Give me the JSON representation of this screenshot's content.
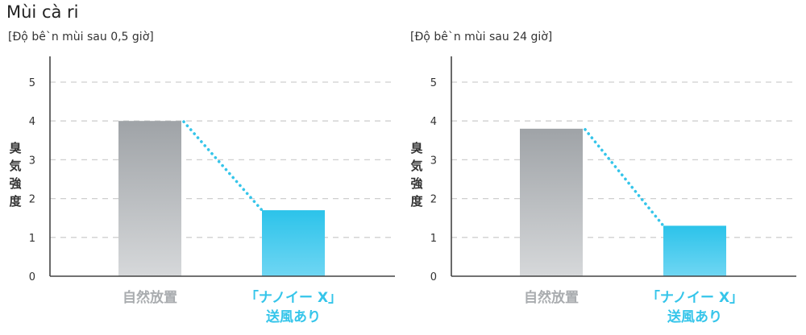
{
  "page": {
    "title": "Mùi cà ri"
  },
  "chart_data": [
    {
      "type": "bar",
      "title": "[Độ bê`n mùi sau 0,5 giờ]",
      "ylabel": "臭気強度",
      "ylim": [
        0,
        5
      ],
      "yticks": [
        "0",
        "1",
        "2",
        "3",
        "4",
        "5"
      ],
      "grid": true,
      "categories": [
        {
          "lines": [
            "自然放置"
          ],
          "color": "#a9acaf"
        },
        {
          "lines": [
            "「ナノイー X」",
            "送風あり"
          ],
          "color": "#35c5ea"
        }
      ],
      "values": [
        4.0,
        1.7
      ],
      "bar_colors": [
        {
          "top": "#9fa3a7",
          "bottom": "#d6d8da"
        },
        {
          "top": "#2cc3ea",
          "bottom": "#6fd6f3"
        }
      ],
      "connector": "dotted",
      "connector_color": "#35c5ea"
    },
    {
      "type": "bar",
      "title": "[Độ bê`n mùi sau 24 giờ]",
      "ylabel": "臭気強度",
      "ylim": [
        0,
        5
      ],
      "yticks": [
        "0",
        "1",
        "2",
        "3",
        "4",
        "5"
      ],
      "grid": true,
      "categories": [
        {
          "lines": [
            "自然放置"
          ],
          "color": "#a9acaf"
        },
        {
          "lines": [
            "「ナノイー X」",
            "送風あり"
          ],
          "color": "#35c5ea"
        }
      ],
      "values": [
        3.8,
        1.3
      ],
      "bar_colors": [
        {
          "top": "#9fa3a7",
          "bottom": "#d6d8da"
        },
        {
          "top": "#2cc3ea",
          "bottom": "#6fd6f3"
        }
      ],
      "connector": "dotted",
      "connector_color": "#35c5ea"
    }
  ]
}
